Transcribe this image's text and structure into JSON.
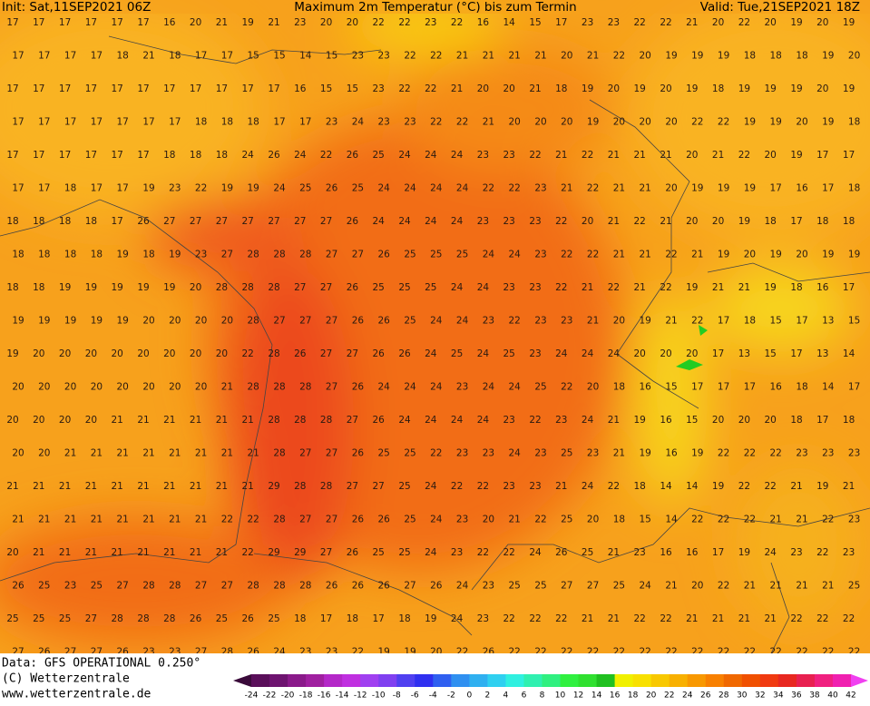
{
  "header": {
    "init": "Init: Sat,11SEP2021 06Z",
    "title": "Maximum 2m Temperatur (°C) bis zum Termin",
    "valid": "Valid: Tue,21SEP2021 18Z"
  },
  "map": {
    "rows": [
      [
        17,
        17,
        17,
        17,
        17,
        17,
        16,
        20,
        21,
        19,
        21,
        23,
        20,
        20,
        22,
        22,
        23,
        22,
        16,
        14,
        15,
        17,
        23,
        23,
        22,
        22,
        21,
        20,
        22,
        20,
        19,
        20,
        19
      ],
      [
        17,
        17,
        17,
        17,
        18,
        21,
        18,
        17,
        17,
        15,
        15,
        14,
        15,
        23,
        23,
        22,
        22,
        21,
        21,
        21,
        21,
        20,
        21,
        22,
        20,
        19,
        19,
        19,
        18,
        18,
        18,
        19,
        20
      ],
      [
        17,
        17,
        17,
        17,
        17,
        17,
        17,
        17,
        17,
        17,
        17,
        16,
        15,
        15,
        23,
        22,
        22,
        21,
        20,
        20,
        21,
        18,
        19,
        20,
        19,
        20,
        19,
        18,
        19,
        19,
        19,
        20,
        19
      ],
      [
        17,
        17,
        17,
        17,
        17,
        17,
        17,
        18,
        18,
        18,
        17,
        17,
        23,
        24,
        23,
        23,
        22,
        22,
        21,
        20,
        20,
        20,
        19,
        20,
        20,
        20,
        22,
        22,
        19,
        19,
        20,
        19,
        18
      ],
      [
        17,
        17,
        17,
        17,
        17,
        17,
        18,
        18,
        18,
        24,
        26,
        24,
        22,
        26,
        25,
        24,
        24,
        24,
        23,
        23,
        22,
        21,
        22,
        21,
        21,
        21,
        20,
        21,
        22,
        20,
        19,
        17,
        17
      ],
      [
        17,
        17,
        18,
        17,
        17,
        19,
        23,
        22,
        19,
        19,
        24,
        25,
        26,
        25,
        24,
        24,
        24,
        24,
        22,
        22,
        23,
        21,
        22,
        21,
        21,
        20,
        19,
        19,
        19,
        17,
        16,
        17,
        18
      ],
      [
        18,
        18,
        18,
        18,
        17,
        26,
        27,
        27,
        27,
        27,
        27,
        27,
        27,
        26,
        24,
        24,
        24,
        24,
        23,
        23,
        23,
        22,
        20,
        21,
        22,
        21,
        20,
        20,
        19,
        18,
        17,
        18,
        18
      ],
      [
        18,
        18,
        18,
        18,
        19,
        18,
        19,
        23,
        27,
        28,
        28,
        28,
        27,
        27,
        26,
        25,
        25,
        25,
        24,
        24,
        23,
        22,
        22,
        21,
        21,
        22,
        21,
        19,
        20,
        19,
        20,
        19,
        19
      ],
      [
        18,
        18,
        19,
        19,
        19,
        19,
        19,
        20,
        28,
        28,
        28,
        27,
        27,
        26,
        25,
        25,
        25,
        24,
        24,
        23,
        23,
        22,
        21,
        22,
        21,
        22,
        19,
        21,
        21,
        19,
        18,
        16,
        17
      ],
      [
        19,
        19,
        19,
        19,
        19,
        20,
        20,
        20,
        20,
        28,
        27,
        27,
        27,
        26,
        26,
        25,
        24,
        24,
        23,
        22,
        23,
        23,
        21,
        20,
        19,
        21,
        22,
        17,
        18,
        15,
        17,
        13,
        15
      ],
      [
        19,
        20,
        20,
        20,
        20,
        20,
        20,
        20,
        20,
        22,
        28,
        26,
        27,
        27,
        26,
        26,
        24,
        25,
        24,
        25,
        23,
        24,
        24,
        24,
        20,
        20,
        20,
        17,
        13,
        15,
        17,
        13,
        14
      ],
      [
        20,
        20,
        20,
        20,
        20,
        20,
        20,
        20,
        21,
        28,
        28,
        28,
        27,
        26,
        24,
        24,
        24,
        23,
        24,
        24,
        25,
        22,
        20,
        18,
        16,
        15,
        17,
        17,
        17,
        16,
        18,
        14,
        17
      ],
      [
        20,
        20,
        20,
        20,
        21,
        21,
        21,
        21,
        21,
        21,
        28,
        28,
        28,
        27,
        26,
        24,
        24,
        24,
        24,
        23,
        22,
        23,
        24,
        21,
        19,
        16,
        15,
        20,
        20,
        20,
        18,
        17,
        18
      ],
      [
        20,
        20,
        21,
        21,
        21,
        21,
        21,
        21,
        21,
        21,
        28,
        27,
        27,
        26,
        25,
        25,
        22,
        23,
        23,
        24,
        23,
        25,
        23,
        21,
        19,
        16,
        19,
        22,
        22,
        22,
        23,
        23,
        23
      ],
      [
        21,
        21,
        21,
        21,
        21,
        21,
        21,
        21,
        21,
        21,
        29,
        28,
        28,
        27,
        27,
        25,
        24,
        22,
        22,
        23,
        23,
        21,
        24,
        22,
        18,
        14,
        14,
        19,
        22,
        22,
        21,
        19,
        21
      ],
      [
        21,
        21,
        21,
        21,
        21,
        21,
        21,
        21,
        22,
        22,
        28,
        27,
        27,
        26,
        26,
        25,
        24,
        23,
        20,
        21,
        22,
        25,
        20,
        18,
        15,
        14,
        22,
        22,
        22,
        21,
        21,
        22,
        23
      ],
      [
        20,
        21,
        21,
        21,
        21,
        21,
        21,
        21,
        21,
        22,
        29,
        29,
        27,
        26,
        25,
        25,
        24,
        23,
        22,
        22,
        24,
        26,
        25,
        21,
        23,
        16,
        16,
        17,
        19,
        24,
        23,
        22,
        23
      ],
      [
        26,
        25,
        23,
        25,
        27,
        28,
        28,
        27,
        27,
        28,
        28,
        28,
        26,
        26,
        26,
        27,
        26,
        24,
        23,
        25,
        25,
        27,
        27,
        25,
        24,
        21,
        20,
        22,
        21,
        21,
        21,
        21,
        25
      ],
      [
        25,
        25,
        25,
        27,
        28,
        28,
        28,
        26,
        25,
        26,
        25,
        18,
        17,
        18,
        17,
        18,
        19,
        24,
        23,
        22,
        22,
        22,
        21,
        21,
        22,
        22,
        21,
        21,
        21,
        21,
        22,
        22,
        22
      ],
      [
        27,
        26,
        27,
        27,
        26,
        23,
        23,
        27,
        28,
        26,
        24,
        23,
        23,
        22,
        19,
        19,
        20,
        22,
        26,
        22,
        22,
        22,
        22,
        22,
        22,
        22,
        22,
        22,
        22,
        22,
        22,
        22,
        22
      ]
    ]
  },
  "footer": {
    "data": "Data: GFS OPERATIONAL 0.250°",
    "copyright": "(C) Wetterzentrale",
    "url": "www.wetterzentrale.de"
  },
  "legend": {
    "labels": [
      -24,
      -22,
      -20,
      -18,
      -16,
      -14,
      -12,
      -10,
      -8,
      -6,
      -4,
      -2,
      0,
      2,
      4,
      6,
      8,
      10,
      12,
      14,
      16,
      18,
      20,
      22,
      24,
      26,
      28,
      30,
      32,
      34,
      36,
      38,
      40,
      42
    ],
    "colors": [
      "#3a0a3a",
      "#5a0f5a",
      "#6e1470",
      "#8a1a8a",
      "#a020a0",
      "#b428c8",
      "#c030e0",
      "#a040f0",
      "#8040f0",
      "#5040f0",
      "#3030f0",
      "#3060f0",
      "#3090f0",
      "#30b0f0",
      "#30d0f0",
      "#30f0e0",
      "#30f0b0",
      "#30f080",
      "#30f040",
      "#30e030",
      "#20c020",
      "#f0f000",
      "#f8e000",
      "#f8c800",
      "#f8b000",
      "#f89800",
      "#f88000",
      "#f06800",
      "#f05000",
      "#f03a10",
      "#e82820",
      "#e82050",
      "#f02080",
      "#f020b0",
      "#f040f0"
    ]
  }
}
